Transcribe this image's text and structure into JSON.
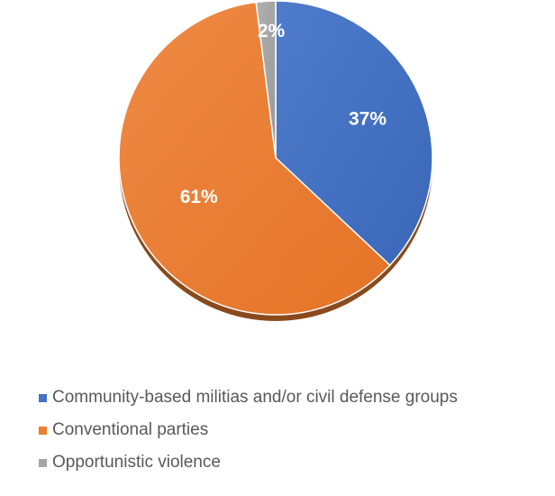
{
  "chart_data": {
    "type": "pie",
    "categories": [
      "Community-based militias and/or civil defense groups",
      "Conventional parties",
      "Opportunistic violence"
    ],
    "values": [
      37,
      61,
      2
    ],
    "data_labels": [
      "37%",
      "61%",
      "2%"
    ],
    "colors": [
      "#4472C4",
      "#ED7D31",
      "#A5A5A5"
    ],
    "start_angle": "top, clockwise",
    "legend_position": "bottom-left",
    "title": ""
  }
}
